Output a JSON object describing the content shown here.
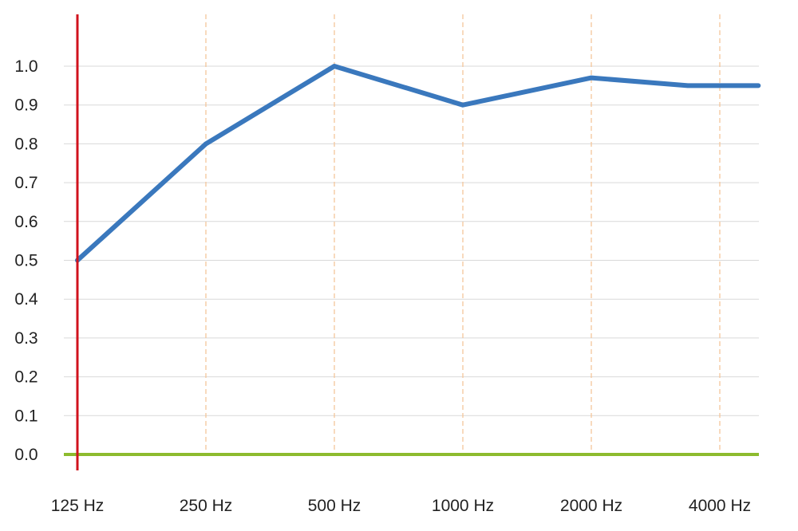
{
  "chart_data": {
    "type": "line",
    "categories": [
      "125 Hz",
      "250 Hz",
      "500 Hz",
      "1000 Hz",
      "2000 Hz",
      "4000 Hz"
    ],
    "x": [
      0,
      1,
      2,
      3,
      4,
      4.75,
      5.3
    ],
    "values": [
      0.5,
      0.8,
      1.0,
      0.9,
      0.97,
      0.95,
      0.95
    ],
    "yticks": [
      "0.0",
      "0.1",
      "0.2",
      "0.3",
      "0.4",
      "0.5",
      "0.6",
      "0.7",
      "0.8",
      "0.9",
      "1.0"
    ],
    "ylim": [
      0,
      1.0
    ],
    "grid": true,
    "colors": {
      "line": "#3a78bd",
      "y_axis": "#d0121c",
      "x_axis": "#8dbb2e",
      "grid_h": "#d9d9d9",
      "grid_v": "#f5c59a"
    }
  }
}
